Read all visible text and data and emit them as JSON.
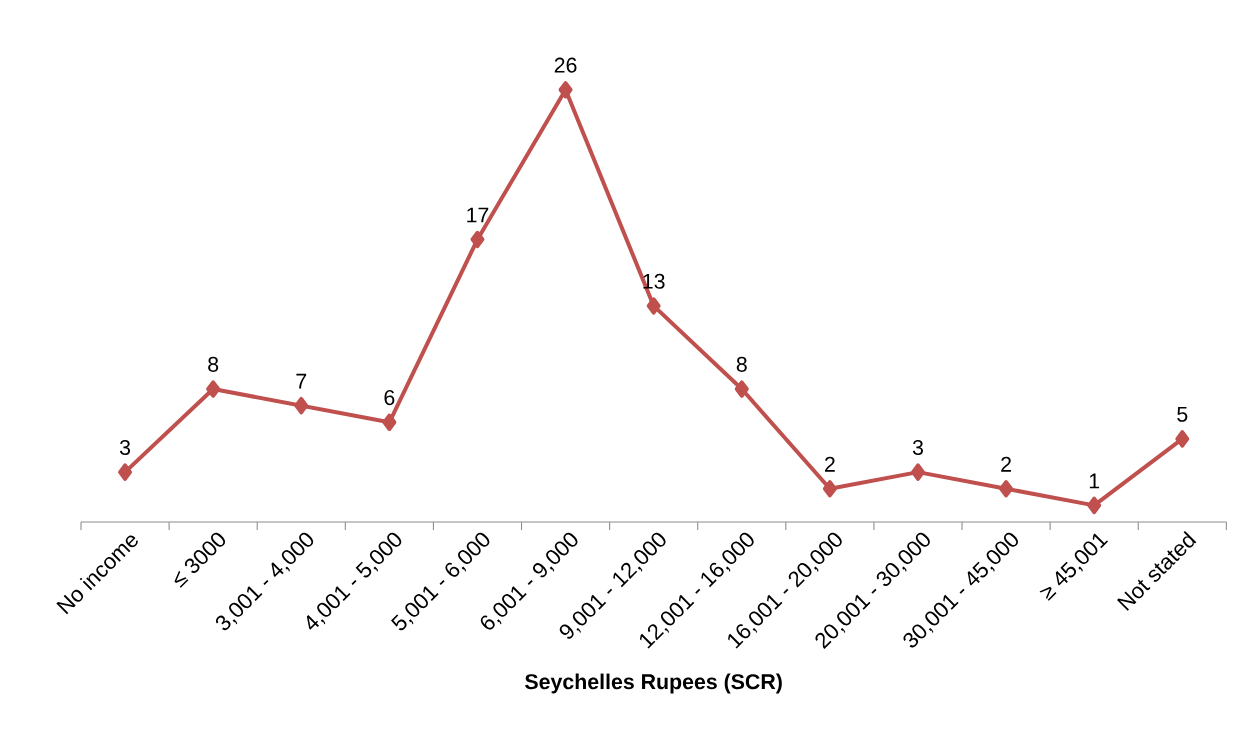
{
  "chart_data": {
    "type": "line",
    "xlabel": "Seychelles Rupees (SCR)",
    "categories": [
      "No income",
      "≤ 3000",
      "3,001 - 4,000",
      "4,001 - 5,000",
      "5,001 - 6,000",
      "6,001 - 9,000",
      "9,001 - 12,000",
      "12,001 - 16,000",
      "16,001 - 20,000",
      "20,001 - 30,000",
      "30,001 - 45,000",
      "≥ 45,001",
      "Not stated"
    ],
    "values": [
      3,
      8,
      7,
      6,
      17,
      26,
      13,
      8,
      2,
      3,
      2,
      1,
      5
    ],
    "color": "#c0504d",
    "marker": "diamond",
    "line_style": "solid",
    "data_labels": true,
    "tick_labels": "x",
    "grid": false
  }
}
